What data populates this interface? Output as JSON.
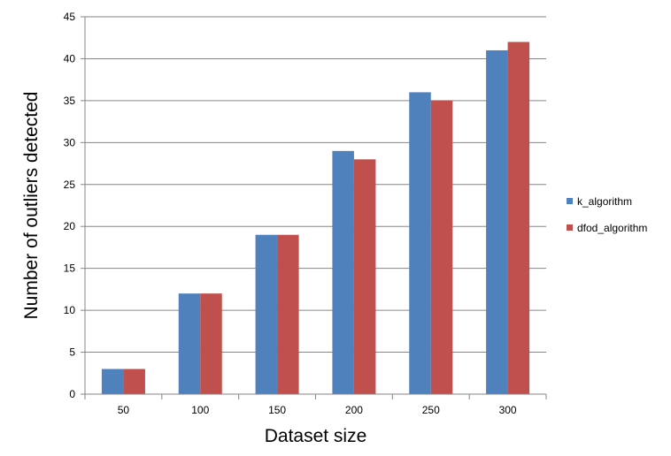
{
  "chart_data": {
    "type": "bar",
    "title": "",
    "xlabel": "Dataset size",
    "ylabel": "Number of outliers detected",
    "categories": [
      "50",
      "100",
      "150",
      "200",
      "250",
      "300"
    ],
    "series": [
      {
        "name": "k_algorithm",
        "color": "#4f81bd",
        "values": [
          3,
          12,
          19,
          29,
          36,
          41
        ]
      },
      {
        "name": "dfod_algorithm",
        "color": "#c0504d",
        "values": [
          3,
          12,
          19,
          28,
          35,
          42
        ]
      }
    ],
    "ylim": [
      0,
      45
    ],
    "yticks": [
      0,
      5,
      10,
      15,
      20,
      25,
      30,
      35,
      40,
      45
    ],
    "grid": true,
    "legend_position": "right"
  }
}
